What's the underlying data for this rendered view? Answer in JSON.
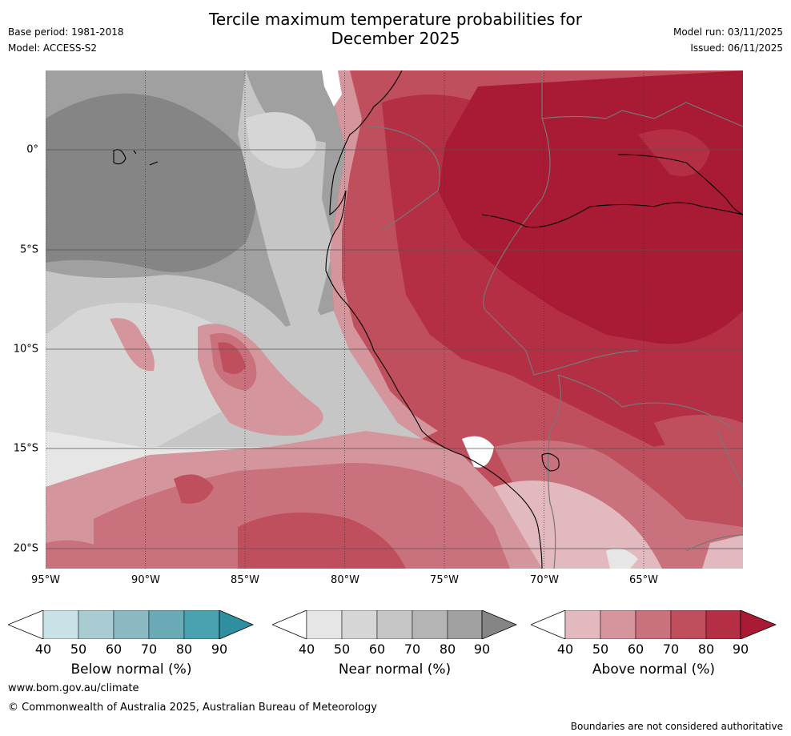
{
  "title": {
    "line1": "Tercile maximum temperature probabilities for",
    "line2": "December 2025"
  },
  "meta": {
    "base_period": "Base period: 1981-2018",
    "model": "Model: ACCESS-S2",
    "model_run": "Model run: 03/11/2025",
    "issued": "Issued: 06/11/2025"
  },
  "map": {
    "lon_labels": [
      "95°W",
      "90°W",
      "85°W",
      "80°W",
      "75°W",
      "70°W",
      "65°W"
    ],
    "lat_labels": [
      "0°",
      "5°S",
      "10°S",
      "15°S",
      "20°S"
    ],
    "colors": {
      "near": [
        "#e6e6e6",
        "#d6d6d6",
        "#c6c6c6",
        "#b4b4b4",
        "#a0a0a0",
        "#858585"
      ],
      "above": [
        "#e2b9be",
        "#d4959c",
        "#c9717c",
        "#c04f5d",
        "#b52f44",
        "#a91b35"
      ],
      "below": [
        "#c8e2e7",
        "#a9cbd2",
        "#8ab8c3",
        "#6aaab5",
        "#48a2b0",
        "#2e8fa1"
      ]
    }
  },
  "colorbars": [
    {
      "label": "Below normal (%)",
      "ticks": [
        "40",
        "50",
        "60",
        "70",
        "80",
        "90"
      ],
      "key": "below"
    },
    {
      "label": "Near normal (%)",
      "ticks": [
        "40",
        "50",
        "60",
        "70",
        "80",
        "90"
      ],
      "key": "near"
    },
    {
      "label": "Above normal (%)",
      "ticks": [
        "40",
        "50",
        "60",
        "70",
        "80",
        "90"
      ],
      "key": "above"
    }
  ],
  "footer": {
    "website": "www.bom.gov.au/climate",
    "copyright": "© Commonwealth of Australia 2025, Australian Bureau of Meteorology",
    "disclaimer": "Boundaries are not considered authoritative"
  }
}
